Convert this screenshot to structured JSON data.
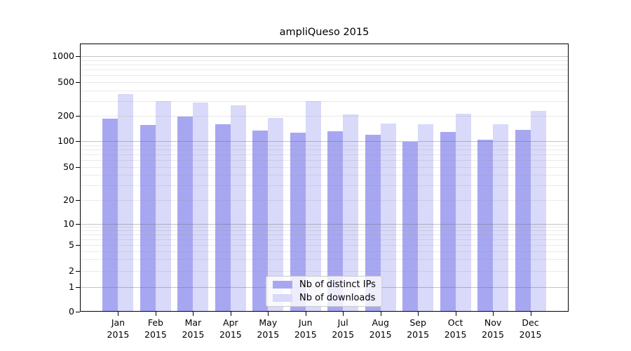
{
  "chart_data": {
    "type": "bar",
    "title": "ampliQueso 2015",
    "categories": [
      "Jan 2015",
      "Feb 2015",
      "Mar 2015",
      "Apr 2015",
      "May 2015",
      "Jun 2015",
      "Jul 2015",
      "Aug 2015",
      "Sep 2015",
      "Oct 2015",
      "Nov 2015",
      "Dec 2015"
    ],
    "series": [
      {
        "name": "Nb of distinct IPs",
        "color": "#a7a7f1",
        "values": [
          184,
          155,
          197,
          160,
          133,
          126,
          132,
          119,
          98,
          128,
          104,
          136
        ]
      },
      {
        "name": "Nb of downloads",
        "color": "#d9d9f9",
        "values": [
          361,
          298,
          289,
          265,
          190,
          300,
          207,
          163,
          160,
          213,
          158,
          227
        ]
      }
    ],
    "xlabel": "",
    "ylabel": "",
    "yscale": "symlog",
    "yticks": [
      0,
      1,
      2,
      5,
      10,
      20,
      50,
      100,
      200,
      500,
      1000
    ],
    "ylim": [
      0,
      1400
    ],
    "grid": true,
    "legend_position": "lower center"
  },
  "colors": {
    "background": "#ffffff",
    "spine": "#000000",
    "bar_ips": "#a7a7f1",
    "bar_downloads": "#d9d9f9",
    "grid_major": "#c5c5c5",
    "grid_minor": "#e8e8e8"
  }
}
